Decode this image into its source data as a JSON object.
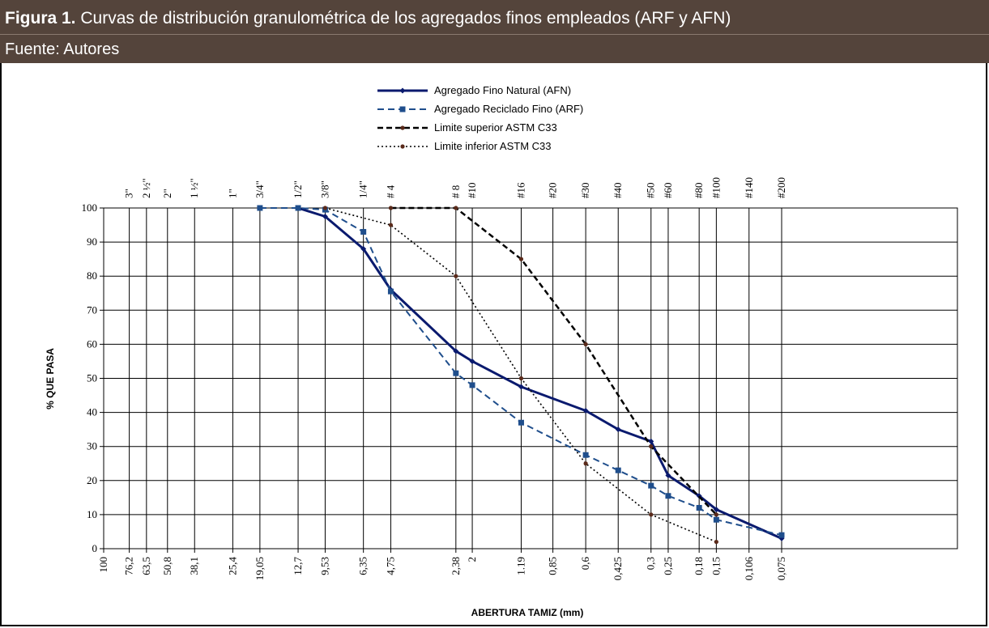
{
  "figure": {
    "label": "Figura 1.",
    "caption": "Curvas de distribución granulométrica de los agregados finos empleados (ARF y AFN)",
    "source": "Fuente: Autores"
  },
  "chart_data": {
    "type": "line",
    "xlabel": "ABERTURA TAMIZ (mm)",
    "ylabel": "% QUE PASA",
    "ylim": [
      0,
      100
    ],
    "yticks": [
      0,
      10,
      20,
      30,
      40,
      50,
      60,
      70,
      80,
      90,
      100
    ],
    "x_scale": "log",
    "x_direction": "decreasing",
    "grid": true,
    "legend_position": "top-center",
    "sieves_mm": [
      {
        "label": "100",
        "value": 100
      },
      {
        "label": "76,2",
        "value": 76.2
      },
      {
        "label": "63,5",
        "value": 63.5
      },
      {
        "label": "50,8",
        "value": 50.8
      },
      {
        "label": "38,1",
        "value": 38.1
      },
      {
        "label": "25,4",
        "value": 25.4
      },
      {
        "label": "19,05",
        "value": 19.05
      },
      {
        "label": "12,7",
        "value": 12.7
      },
      {
        "label": "9,53",
        "value": 9.53
      },
      {
        "label": "6,35",
        "value": 6.35
      },
      {
        "label": "4,75",
        "value": 4.75
      },
      {
        "label": "2,38",
        "value": 2.38
      },
      {
        "label": "2",
        "value": 2
      },
      {
        "label": "1.19",
        "value": 1.19
      },
      {
        "label": "0,85",
        "value": 0.85
      },
      {
        "label": "0,6",
        "value": 0.6
      },
      {
        "label": "0,425",
        "value": 0.425
      },
      {
        "label": "0,3",
        "value": 0.3
      },
      {
        "label": "0,25",
        "value": 0.25
      },
      {
        "label": "0,18",
        "value": 0.18
      },
      {
        "label": "0,15",
        "value": 0.15
      },
      {
        "label": "0,106",
        "value": 0.106
      },
      {
        "label": "0,075",
        "value": 0.075
      }
    ],
    "sieve_names": [
      {
        "label": "3\"",
        "value": 76.2
      },
      {
        "label": "2 ½\"",
        "value": 63.5
      },
      {
        "label": "2\"",
        "value": 50.8
      },
      {
        "label": "1 ½\"",
        "value": 38.1
      },
      {
        "label": "1\"",
        "value": 25.4
      },
      {
        "label": "3/4\"",
        "value": 19.05
      },
      {
        "label": "1/2\"",
        "value": 12.7
      },
      {
        "label": "3/8\"",
        "value": 9.53
      },
      {
        "label": "1/4\"",
        "value": 6.35
      },
      {
        "label": "# 4",
        "value": 4.75
      },
      {
        "label": "# 8",
        "value": 2.38
      },
      {
        "label": "#10",
        "value": 2
      },
      {
        "label": "#16",
        "value": 1.19
      },
      {
        "label": "#20",
        "value": 0.85
      },
      {
        "label": "#30",
        "value": 0.6
      },
      {
        "label": "#40",
        "value": 0.425
      },
      {
        "label": "#50",
        "value": 0.3
      },
      {
        "label": "#60",
        "value": 0.25
      },
      {
        "label": "#80",
        "value": 0.18
      },
      {
        "label": "#100",
        "value": 0.15
      },
      {
        "label": "#140",
        "value": 0.106
      },
      {
        "label": "#200",
        "value": 0.075
      }
    ],
    "series": [
      {
        "name": "Agregado Fino Natural (AFN)",
        "color": "#0a1a6e",
        "style": "solid",
        "marker": "diamond",
        "points": [
          [
            12.7,
            100
          ],
          [
            9.53,
            97.5
          ],
          [
            6.35,
            88
          ],
          [
            4.75,
            76
          ],
          [
            2.38,
            58
          ],
          [
            2,
            55
          ],
          [
            1.19,
            47.5
          ],
          [
            0.6,
            40.5
          ],
          [
            0.425,
            35
          ],
          [
            0.3,
            31.5
          ],
          [
            0.25,
            21.5
          ],
          [
            0.18,
            15.5
          ],
          [
            0.15,
            11.5
          ],
          [
            0.075,
            3
          ]
        ]
      },
      {
        "name": "Agregado Reciclado Fino (ARF)",
        "color": "#1f4e8c",
        "style": "dashed",
        "marker": "square",
        "points": [
          [
            19.05,
            100
          ],
          [
            12.7,
            100
          ],
          [
            9.53,
            99.5
          ],
          [
            6.35,
            93
          ],
          [
            4.75,
            75.5
          ],
          [
            2.38,
            51.5
          ],
          [
            2,
            48
          ],
          [
            1.19,
            37
          ],
          [
            0.6,
            27.5
          ],
          [
            0.425,
            23
          ],
          [
            0.3,
            18.5
          ],
          [
            0.25,
            15.5
          ],
          [
            0.18,
            12
          ],
          [
            0.15,
            8.5
          ],
          [
            0.075,
            4
          ]
        ]
      },
      {
        "name": "Limite superior ASTM C33",
        "color": "#000000",
        "style": "dashed-bold",
        "marker": "dot",
        "points": [
          [
            4.75,
            100
          ],
          [
            2.38,
            100
          ],
          [
            1.19,
            85
          ],
          [
            0.6,
            60
          ],
          [
            0.3,
            30
          ],
          [
            0.15,
            10
          ]
        ]
      },
      {
        "name": "Limite inferior ASTM C33",
        "color": "#000000",
        "style": "dotted",
        "marker": "dot",
        "points": [
          [
            9.53,
            100
          ],
          [
            4.75,
            95
          ],
          [
            2.38,
            80
          ],
          [
            1.19,
            50
          ],
          [
            0.6,
            25
          ],
          [
            0.3,
            10
          ],
          [
            0.15,
            2
          ]
        ]
      }
    ]
  }
}
